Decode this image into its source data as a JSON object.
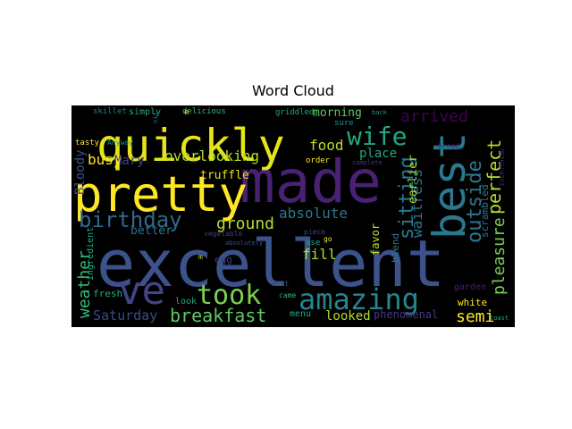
{
  "chart_data": {
    "type": "wordcloud",
    "title": "Word Cloud",
    "background": "#000000",
    "colormap": "viridis",
    "words": [
      {
        "text": "excellent",
        "weight": 1.0,
        "color": "#3b528b",
        "rotate": 0
      },
      {
        "text": "made",
        "weight": 0.95,
        "color": "#482173",
        "rotate": 0
      },
      {
        "text": "pretty",
        "weight": 0.82,
        "color": "#fde725",
        "rotate": 0
      },
      {
        "text": "quickly",
        "weight": 0.8,
        "color": "#e5e419",
        "rotate": 0
      },
      {
        "text": "best",
        "weight": 0.78,
        "color": "#2a788e",
        "rotate": -90
      },
      {
        "text": "ve",
        "weight": 0.7,
        "color": "#414487",
        "rotate": 0
      },
      {
        "text": "amazing",
        "weight": 0.55,
        "color": "#25858e",
        "rotate": 0
      },
      {
        "text": "took",
        "weight": 0.48,
        "color": "#7ad151",
        "rotate": 0
      },
      {
        "text": "wife",
        "weight": 0.45,
        "color": "#22a884",
        "rotate": 0
      },
      {
        "text": "birthday",
        "weight": 0.42,
        "color": "#31688e",
        "rotate": 0
      },
      {
        "text": "breakfast",
        "weight": 0.36,
        "color": "#5ec962",
        "rotate": 0
      },
      {
        "text": "sitting",
        "weight": 0.34,
        "color": "#2a788e",
        "rotate": -90
      },
      {
        "text": "outside",
        "weight": 0.34,
        "color": "#2a788e",
        "rotate": -90
      },
      {
        "text": "perfect",
        "weight": 0.33,
        "color": "#b5de2b",
        "rotate": -90
      },
      {
        "text": "pleasure",
        "weight": 0.3,
        "color": "#7ad151",
        "rotate": -90
      },
      {
        "text": "arrived",
        "weight": 0.3,
        "color": "#440154",
        "rotate": 0
      },
      {
        "text": "weather",
        "weight": 0.3,
        "color": "#35b779",
        "rotate": -90
      },
      {
        "text": "overlooking",
        "weight": 0.28,
        "color": "#b5de2b",
        "rotate": 0
      },
      {
        "text": "ground",
        "weight": 0.28,
        "color": "#b5de2b",
        "rotate": 0
      },
      {
        "text": "absolute",
        "weight": 0.26,
        "color": "#2a788e",
        "rotate": 0
      },
      {
        "text": "waitress",
        "weight": 0.26,
        "color": "#2a788e",
        "rotate": -90
      },
      {
        "text": "semi",
        "weight": 0.25,
        "color": "#fde725",
        "rotate": 0
      },
      {
        "text": "food",
        "weight": 0.25,
        "color": "#b5de2b",
        "rotate": 0
      },
      {
        "text": "busy",
        "weight": 0.24,
        "color": "#fde725",
        "rotate": 0
      },
      {
        "text": "Saturday",
        "weight": 0.24,
        "color": "#3e4989",
        "rotate": 0
      },
      {
        "text": "fill",
        "weight": 0.22,
        "color": "#b5de2b",
        "rotate": 0
      },
      {
        "text": "morning",
        "weight": 0.2,
        "color": "#5ec962",
        "rotate": 0
      },
      {
        "text": "place",
        "weight": 0.2,
        "color": "#22a884",
        "rotate": 0
      },
      {
        "text": "Bloody",
        "weight": 0.2,
        "color": "#3b528b",
        "rotate": -90
      },
      {
        "text": "Mary",
        "weight": 0.18,
        "color": "#414487",
        "rotate": 0
      },
      {
        "text": "looked",
        "weight": 0.18,
        "color": "#b5de2b",
        "rotate": 0
      },
      {
        "text": "earlier",
        "weight": 0.17,
        "color": "#b5de2b",
        "rotate": -90
      },
      {
        "text": "truffle",
        "weight": 0.16,
        "color": "#e5e419",
        "rotate": 0
      },
      {
        "text": "better",
        "weight": 0.16,
        "color": "#2a788e",
        "rotate": 0
      },
      {
        "text": "phenomenal",
        "weight": 0.14,
        "color": "#443983",
        "rotate": 0
      },
      {
        "text": "favor",
        "weight": 0.14,
        "color": "#b5de2b",
        "rotate": -90
      },
      {
        "text": "blend",
        "weight": 0.13,
        "color": "#2a788e",
        "rotate": -90
      },
      {
        "text": "scrambled",
        "weight": 0.12,
        "color": "#2a788e",
        "rotate": -90
      },
      {
        "text": "ingredient",
        "weight": 0.11,
        "color": "#22a884",
        "rotate": -90
      },
      {
        "text": "fresh",
        "weight": 0.12,
        "color": "#22a884",
        "rotate": 0
      },
      {
        "text": "egg",
        "weight": 0.11,
        "color": "#443983",
        "rotate": 0
      },
      {
        "text": "look",
        "weight": 0.1,
        "color": "#22a884",
        "rotate": 0
      },
      {
        "text": "menu",
        "weight": 0.1,
        "color": "#22a884",
        "rotate": 0
      },
      {
        "text": "white",
        "weight": 0.11,
        "color": "#fde725",
        "rotate": 0
      },
      {
        "text": "garden",
        "weight": 0.1,
        "color": "#482173",
        "rotate": 0
      },
      {
        "text": "simply",
        "weight": 0.1,
        "color": "#22a884",
        "rotate": 0
      },
      {
        "text": "delicious",
        "weight": 0.09,
        "color": "#35b779",
        "rotate": 0
      },
      {
        "text": "skillet",
        "weight": 0.09,
        "color": "#2a788e",
        "rotate": 0
      },
      {
        "text": "griddled",
        "weight": 0.09,
        "color": "#22a884",
        "rotate": 0
      },
      {
        "text": "sure",
        "weight": 0.09,
        "color": "#21918c",
        "rotate": 0
      },
      {
        "text": "order",
        "weight": 0.09,
        "color": "#fde725",
        "rotate": 0
      },
      {
        "text": "tasty",
        "weight": 0.09,
        "color": "#fde725",
        "rotate": 0
      },
      {
        "text": "Anyway",
        "weight": 0.08,
        "color": "#21918c",
        "rotate": 0
      },
      {
        "text": "vegetable",
        "weight": 0.08,
        "color": "#443983",
        "rotate": 0
      },
      {
        "text": "absolutely",
        "weight": 0.07,
        "color": "#3b528b",
        "rotate": 0
      },
      {
        "text": "piece",
        "weight": 0.08,
        "color": "#3e4989",
        "rotate": 0
      },
      {
        "text": "use",
        "weight": 0.09,
        "color": "#22a884",
        "rotate": 0
      },
      {
        "text": "go",
        "weight": 0.08,
        "color": "#fde725",
        "rotate": 0
      },
      {
        "text": "wait",
        "weight": 0.08,
        "color": "#3b528b",
        "rotate": 0
      },
      {
        "text": "came",
        "weight": 0.08,
        "color": "#35b779",
        "rotate": 0
      },
      {
        "text": "complete",
        "weight": 0.07,
        "color": "#443983",
        "rotate": 0
      },
      {
        "text": "back",
        "weight": 0.07,
        "color": "#21918c",
        "rotate": 0
      },
      {
        "text": "broad",
        "weight": 0.07,
        "color": "#482173",
        "rotate": 0
      },
      {
        "text": "toast",
        "weight": 0.07,
        "color": "#22a884",
        "rotate": 0
      },
      {
        "text": "EVERYTHING",
        "weight": 0.07,
        "color": "#482173",
        "rotate": -90
      },
      {
        "text": "nit",
        "weight": 0.06,
        "color": "#2a788e",
        "rotate": -90
      },
      {
        "text": "m",
        "weight": 0.07,
        "color": "#b5de2b",
        "rotate": 0
      },
      {
        "text": "e",
        "weight": 0.09,
        "color": "#e5e419",
        "rotate": 0
      }
    ]
  }
}
